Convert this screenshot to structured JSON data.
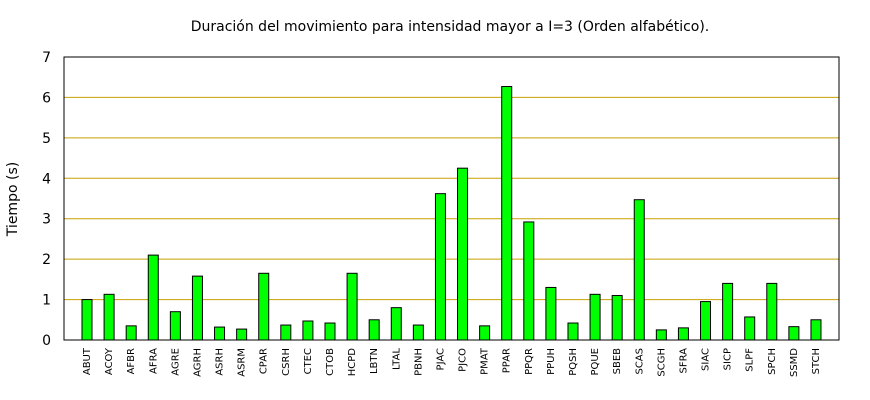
{
  "chart_data": {
    "type": "bar",
    "title": "Duración del movimiento para intensidad mayor a I=3 (Orden alfabético).",
    "xlabel": "",
    "ylabel": "Tiempo (s)",
    "ylim": [
      0,
      7
    ],
    "yticks": [
      0,
      1,
      2,
      3,
      4,
      5,
      6,
      7
    ],
    "grid": "horizontal",
    "bar_color": "#00ff00",
    "grid_color": "#c8a000",
    "categories": [
      "ABUT",
      "ACOY",
      "AFBR",
      "AFRA",
      "AGRE",
      "AGRH",
      "ASRH",
      "ASRM",
      "CPAR",
      "CSRH",
      "CTEC",
      "CTOB",
      "HCPD",
      "LBTN",
      "LTAL",
      "PBNH",
      "PJAC",
      "PJCO",
      "PMAT",
      "PPAR",
      "PPQR",
      "PPUH",
      "PQSH",
      "PQUE",
      "SBEB",
      "SCAS",
      "SCGH",
      "SFRA",
      "SIAC",
      "SICP",
      "SLPF",
      "SPCH",
      "SSMD",
      "STCH"
    ],
    "values": [
      1.0,
      1.13,
      0.35,
      2.1,
      0.7,
      1.58,
      0.32,
      0.27,
      1.65,
      0.37,
      0.47,
      0.42,
      1.65,
      0.5,
      0.8,
      0.37,
      3.62,
      4.25,
      0.35,
      6.27,
      2.92,
      1.3,
      0.42,
      1.13,
      1.1,
      3.47,
      0.25,
      0.3,
      0.95,
      1.4,
      0.57,
      1.4,
      0.33,
      0.5
    ]
  }
}
